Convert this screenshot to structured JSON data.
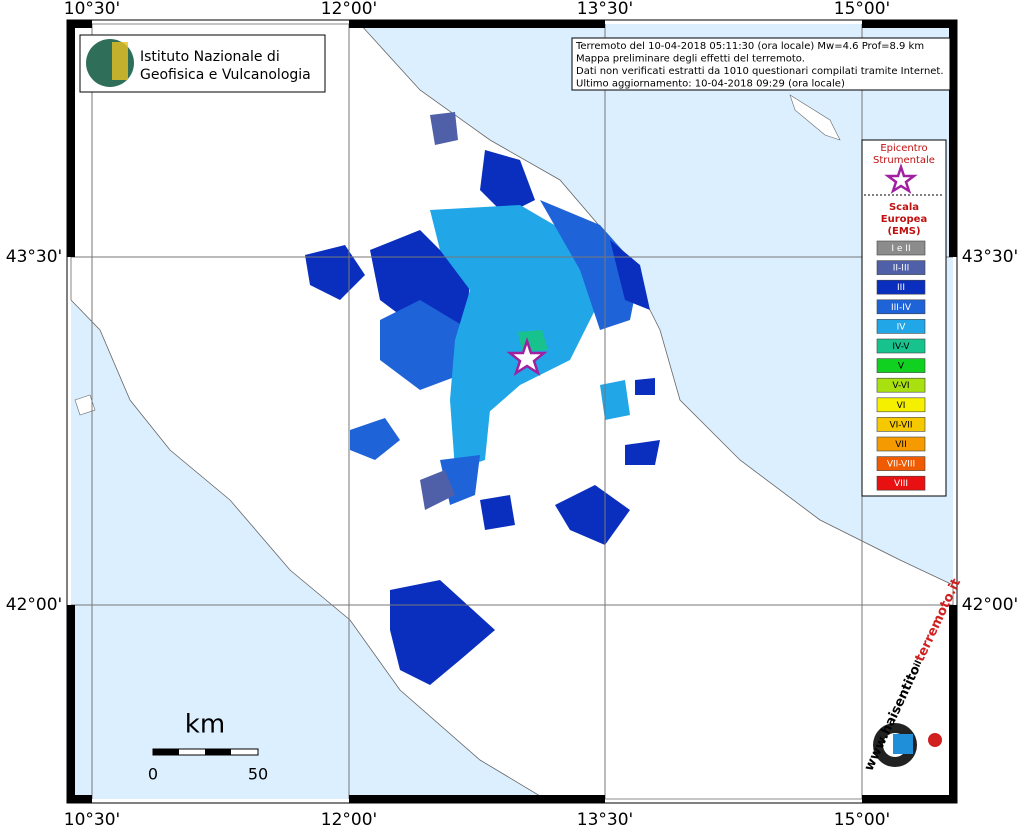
{
  "map": {
    "grid_labels": {
      "top": [
        "10°30'",
        "12°00'",
        "13°30'",
        "15°00'"
      ],
      "bottom": [
        "10°30'",
        "12°00'",
        "13°30'",
        "15°00'"
      ],
      "left": [
        "43°30'",
        "42°00'"
      ],
      "right": [
        "43°30'",
        "42°00'"
      ]
    },
    "logo": [
      "Istituto Nazionale di",
      "Geofisica e Vulcanologia"
    ],
    "info": [
      "Terremoto del 10-04-2018 05:11:30 (ora locale) Mw=4.6 Prof=8.9 km",
      "Mappa preliminare degli effetti del terremoto.",
      "Dati non verificati estratti da 1010 questionari compilati tramite Internet.",
      "Ultimo aggiornamento: 10-04-2018 09:29 (ora locale)"
    ],
    "legend": {
      "epicenter_title": [
        "Epicentro",
        "Strumentale"
      ],
      "scale_title": [
        "Scala",
        "Europea",
        "(EMS)"
      ],
      "classes": [
        {
          "label": "I e II",
          "color": "#8c8c8c"
        },
        {
          "label": "II-III",
          "color": "#4f5fa8"
        },
        {
          "label": "III",
          "color": "#0a2fbf"
        },
        {
          "label": "III-IV",
          "color": "#1f63d8"
        },
        {
          "label": "IV",
          "color": "#21a6e8"
        },
        {
          "label": "IV-V",
          "color": "#18c28c"
        },
        {
          "label": "V",
          "color": "#10d020"
        },
        {
          "label": "V-VI",
          "color": "#a8e010"
        },
        {
          "label": "VI",
          "color": "#f5f000"
        },
        {
          "label": "VI-VII",
          "color": "#f5c800"
        },
        {
          "label": "VII",
          "color": "#f59a00"
        },
        {
          "label": "VII-VIII",
          "color": "#f05a00"
        },
        {
          "label": "VIII",
          "color": "#e81010"
        }
      ]
    },
    "scale_bar": {
      "unit": "km",
      "labels": [
        "0",
        "50"
      ]
    },
    "watermark": [
      "www.haisentito",
      "il",
      "terremoto.it"
    ]
  }
}
